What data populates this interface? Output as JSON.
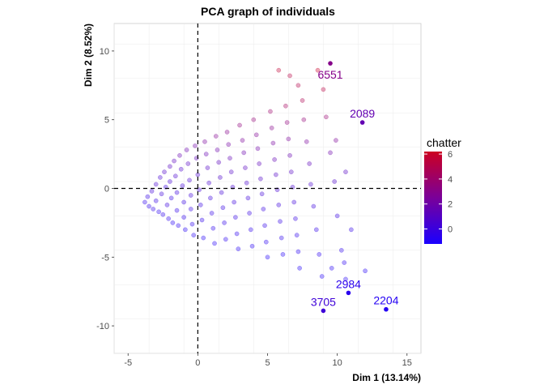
{
  "chart_data": {
    "type": "scatter",
    "title": "PCA graph of individuals",
    "xlabel": "Dim 1 (13.14%)",
    "ylabel": "Dim 2 (8.52%)",
    "xlim": [
      -6,
      16
    ],
    "ylim": [
      -12,
      12
    ],
    "x_ticks": [
      -5,
      0,
      5,
      10,
      15
    ],
    "y_ticks": [
      -10,
      -5,
      0,
      5,
      10
    ],
    "grid": true,
    "reference_lines": {
      "x": 0,
      "y": 0,
      "style": "dashed"
    },
    "color_variable": "chatter",
    "color_scale": {
      "low": "#1a00ff",
      "high": "#cc0022",
      "min": -1.2,
      "max": 6.2,
      "ticks": [
        0,
        2,
        4,
        6
      ]
    },
    "legend_position": "right",
    "labeled_points": [
      {
        "label": "6551",
        "x": 9.5,
        "y": 9.1,
        "chatter": 3.0
      },
      {
        "label": "2089",
        "x": 11.8,
        "y": 4.8,
        "chatter": 1.6
      },
      {
        "label": "2984",
        "x": 10.8,
        "y": -7.6,
        "chatter": -0.6
      },
      {
        "label": "3705",
        "x": 9.0,
        "y": -8.9,
        "chatter": 0.2
      },
      {
        "label": "2204",
        "x": 13.5,
        "y": -8.8,
        "chatter": -0.8
      }
    ],
    "cloud_points": [
      [
        -3.8,
        -1.0,
        -0.5
      ],
      [
        -3.6,
        -0.6,
        -0.3
      ],
      [
        -3.5,
        -1.3,
        -0.6
      ],
      [
        -3.3,
        -0.2,
        0.2
      ],
      [
        -3.2,
        -1.5,
        -0.4
      ],
      [
        -3.0,
        0.3,
        0.5
      ],
      [
        -3.0,
        -0.9,
        -0.2
      ],
      [
        -2.8,
        -1.7,
        -0.7
      ],
      [
        -2.7,
        0.8,
        0.4
      ],
      [
        -2.6,
        -0.4,
        0.1
      ],
      [
        -2.5,
        -1.9,
        -0.5
      ],
      [
        -2.4,
        1.2,
        0.8
      ],
      [
        -2.3,
        0.1,
        -0.1
      ],
      [
        -2.2,
        -1.2,
        0.0
      ],
      [
        -2.1,
        -2.2,
        -0.6
      ],
      [
        -2.0,
        1.6,
        1.0
      ],
      [
        -2.0,
        0.5,
        0.3
      ],
      [
        -1.9,
        -0.7,
        -0.3
      ],
      [
        -1.8,
        -2.5,
        -0.8
      ],
      [
        -1.7,
        2.0,
        1.2
      ],
      [
        -1.6,
        0.9,
        0.6
      ],
      [
        -1.5,
        -0.3,
        0.0
      ],
      [
        -1.5,
        -1.6,
        -0.4
      ],
      [
        -1.4,
        -2.7,
        -0.7
      ],
      [
        -1.3,
        2.4,
        1.6
      ],
      [
        -1.2,
        1.4,
        0.7
      ],
      [
        -1.1,
        0.2,
        0.2
      ],
      [
        -1.0,
        -1.0,
        -0.2
      ],
      [
        -1.0,
        -2.1,
        -0.5
      ],
      [
        -0.9,
        -3.0,
        -0.9
      ],
      [
        -0.8,
        2.8,
        1.8
      ],
      [
        -0.7,
        1.8,
        1.0
      ],
      [
        -0.6,
        0.6,
        0.4
      ],
      [
        -0.5,
        -0.5,
        0.1
      ],
      [
        -0.5,
        -1.5,
        -0.3
      ],
      [
        -0.4,
        -2.6,
        -0.6
      ],
      [
        -0.3,
        -3.4,
        -0.8
      ],
      [
        -0.2,
        3.1,
        2.0
      ],
      [
        -0.1,
        2.2,
        1.4
      ],
      [
        0.0,
        1.0,
        0.6
      ],
      [
        0.1,
        -0.1,
        0.2
      ],
      [
        0.2,
        -1.2,
        -0.2
      ],
      [
        0.3,
        -2.3,
        -0.5
      ],
      [
        0.4,
        -3.6,
        -0.9
      ],
      [
        0.5,
        3.4,
        2.4
      ],
      [
        0.6,
        2.5,
        1.6
      ],
      [
        0.7,
        1.5,
        0.9
      ],
      [
        0.8,
        0.4,
        0.5
      ],
      [
        0.9,
        -0.7,
        0.0
      ],
      [
        1.0,
        -1.8,
        -0.3
      ],
      [
        1.1,
        -2.9,
        -0.6
      ],
      [
        1.2,
        -4.0,
        -0.9
      ],
      [
        1.3,
        3.8,
        2.8
      ],
      [
        1.4,
        2.8,
        1.9
      ],
      [
        1.5,
        1.9,
        1.2
      ],
      [
        1.6,
        0.8,
        0.7
      ],
      [
        1.7,
        -0.3,
        0.2
      ],
      [
        1.8,
        -1.4,
        -0.2
      ],
      [
        1.9,
        -2.5,
        -0.4
      ],
      [
        2.0,
        -3.7,
        -0.7
      ],
      [
        2.1,
        4.1,
        3.0
      ],
      [
        2.2,
        3.2,
        2.2
      ],
      [
        2.3,
        2.2,
        1.5
      ],
      [
        2.4,
        1.2,
        0.9
      ],
      [
        2.5,
        0.1,
        0.4
      ],
      [
        2.6,
        -1.0,
        0.0
      ],
      [
        2.7,
        -2.1,
        -0.3
      ],
      [
        2.8,
        -3.3,
        -0.6
      ],
      [
        2.9,
        -4.4,
        -0.9
      ],
      [
        3.0,
        4.6,
        3.4
      ],
      [
        3.2,
        3.5,
        2.5
      ],
      [
        3.3,
        2.6,
        1.8
      ],
      [
        3.4,
        1.5,
        1.1
      ],
      [
        3.5,
        0.4,
        0.6
      ],
      [
        3.6,
        -0.7,
        0.1
      ],
      [
        3.7,
        -1.8,
        -0.2
      ],
      [
        3.8,
        -3.0,
        -0.5
      ],
      [
        3.9,
        -4.2,
        -0.8
      ],
      [
        4.0,
        5.0,
        3.6
      ],
      [
        4.2,
        3.9,
        2.7
      ],
      [
        4.3,
        2.9,
        2.0
      ],
      [
        4.4,
        1.8,
        1.3
      ],
      [
        4.5,
        0.7,
        0.8
      ],
      [
        4.6,
        -0.4,
        0.2
      ],
      [
        4.7,
        -1.5,
        -0.1
      ],
      [
        4.8,
        -2.7,
        -0.4
      ],
      [
        4.9,
        -3.9,
        -0.7
      ],
      [
        5.0,
        -5.0,
        -1.0
      ],
      [
        5.2,
        5.6,
        4.0
      ],
      [
        5.3,
        4.4,
        3.0
      ],
      [
        5.4,
        3.3,
        2.3
      ],
      [
        5.5,
        2.1,
        1.5
      ],
      [
        5.6,
        1.0,
        0.9
      ],
      [
        5.7,
        -0.1,
        0.4
      ],
      [
        5.8,
        -1.2,
        0.0
      ],
      [
        5.9,
        -2.4,
        -0.3
      ],
      [
        6.0,
        -3.6,
        -0.6
      ],
      [
        6.1,
        -4.8,
        -0.9
      ],
      [
        6.3,
        6.0,
        4.4
      ],
      [
        6.4,
        4.8,
        3.4
      ],
      [
        6.5,
        3.6,
        2.5
      ],
      [
        6.6,
        2.4,
        1.7
      ],
      [
        6.7,
        1.2,
        1.0
      ],
      [
        6.8,
        0.1,
        0.5
      ],
      [
        6.9,
        -1.0,
        0.1
      ],
      [
        7.0,
        -2.2,
        -0.2
      ],
      [
        7.1,
        -3.4,
        -0.5
      ],
      [
        7.2,
        -4.6,
        -0.8
      ],
      [
        7.3,
        -5.8,
        -1.0
      ],
      [
        7.5,
        6.4,
        4.8
      ],
      [
        7.6,
        5.0,
        3.6
      ],
      [
        7.8,
        3.4,
        2.4
      ],
      [
        8.0,
        1.8,
        1.3
      ],
      [
        8.1,
        0.3,
        0.6
      ],
      [
        8.3,
        -1.3,
        0.0
      ],
      [
        8.5,
        -3.0,
        -0.4
      ],
      [
        8.7,
        -4.8,
        -0.7
      ],
      [
        8.9,
        -6.4,
        -0.9
      ],
      [
        9.0,
        7.2,
        5.2
      ],
      [
        9.2,
        5.2,
        3.8
      ],
      [
        9.5,
        2.6,
        1.9
      ],
      [
        9.8,
        0.5,
        0.7
      ],
      [
        10.0,
        -2.0,
        -0.2
      ],
      [
        10.3,
        -4.5,
        -0.6
      ],
      [
        10.6,
        -6.6,
        -0.9
      ],
      [
        8.6,
        8.6,
        6.0
      ],
      [
        7.2,
        7.5,
        5.0
      ],
      [
        5.8,
        8.6,
        5.6
      ],
      [
        6.6,
        8.2,
        5.2
      ],
      [
        9.9,
        3.5,
        2.6
      ],
      [
        10.6,
        1.2,
        1.0
      ],
      [
        11.0,
        -3.0,
        -0.4
      ],
      [
        12.0,
        -6.0,
        -0.9
      ],
      [
        10.5,
        -5.4,
        -0.7
      ],
      [
        9.6,
        -5.8,
        -0.8
      ]
    ]
  }
}
